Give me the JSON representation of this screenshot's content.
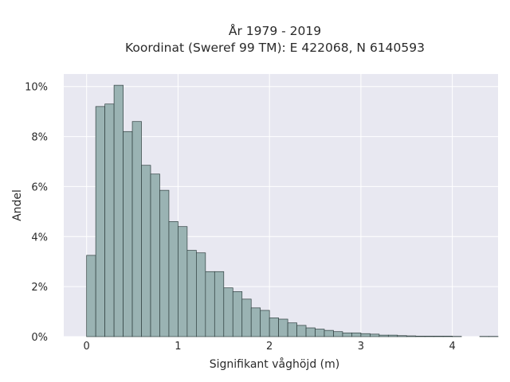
{
  "chart_data": {
    "type": "bar",
    "subtype": "histogram",
    "title": "År 1979 - 2019",
    "subtitle": "Koordinat (Sweref 99 TM): E 422068, N 6140593",
    "xlabel": "Signifikant våghöjd (m)",
    "ylabel": "Andel",
    "bin_width": 0.1,
    "x_start": 0.0,
    "values": [
      3.25,
      9.2,
      9.3,
      10.05,
      8.2,
      8.6,
      6.85,
      6.5,
      5.85,
      4.6,
      4.4,
      3.45,
      3.35,
      2.6,
      2.6,
      1.95,
      1.8,
      1.5,
      1.15,
      1.05,
      0.75,
      0.7,
      0.55,
      0.45,
      0.35,
      0.3,
      0.25,
      0.2,
      0.15,
      0.15,
      0.12,
      0.1,
      0.06,
      0.06,
      0.04,
      0.03,
      0.02,
      0.02,
      0.02,
      0.02,
      0.01,
      0,
      0,
      0.01,
      0.01,
      0,
      0,
      0.01
    ],
    "xlim": [
      -0.25,
      4.5
    ],
    "ylim": [
      0,
      10.5
    ],
    "xticks": [
      0,
      1,
      2,
      3,
      4
    ],
    "xtick_labels": [
      "0",
      "1",
      "2",
      "3",
      "4"
    ],
    "yticks": [
      0,
      2,
      4,
      6,
      8,
      10
    ],
    "ytick_labels": [
      "0%",
      "2%",
      "4%",
      "6%",
      "8%",
      "10%"
    ],
    "grid": true,
    "colors": {
      "bar_fill": "#9ab3b3",
      "bar_stroke": "#2f3f3f",
      "plot_bg": "#e8e8f1",
      "grid": "#ffffff"
    }
  }
}
